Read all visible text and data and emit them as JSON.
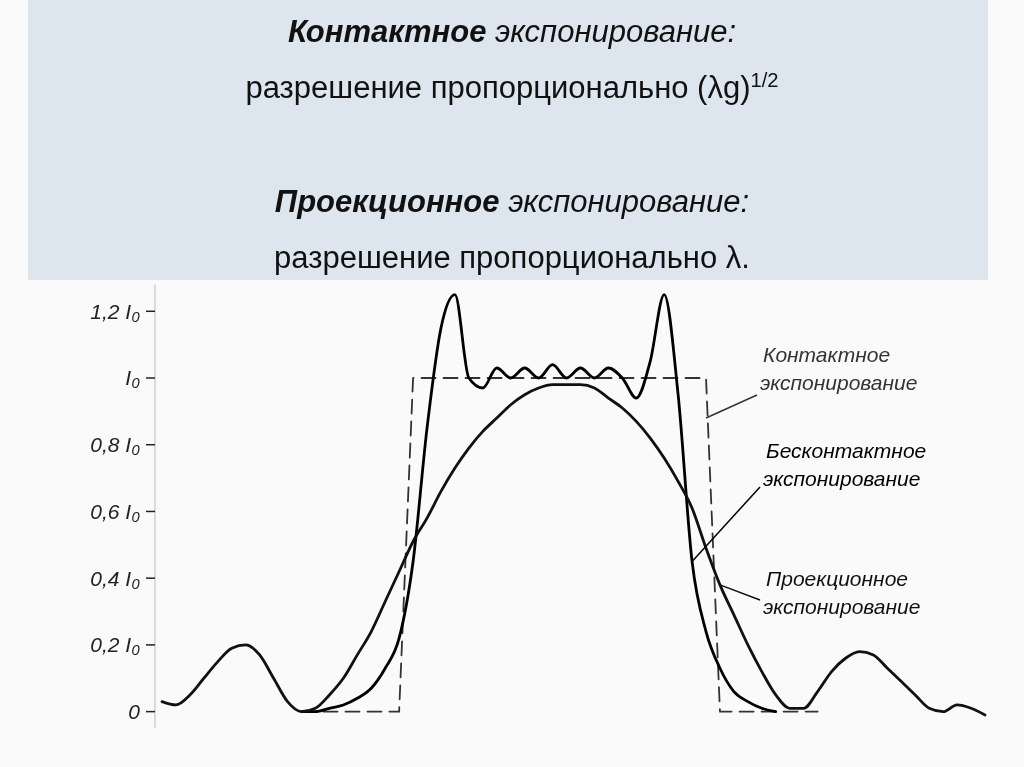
{
  "chart_data": {
    "type": "line",
    "title": "Контактное экспонирование: разрешение пропорционально (λg)$^{1/2}$",
    "subtitle": "Проекционное экспонирование: разрешение  пропорционально λ.",
    "categories": [
      null,
      null,
      null,
      null,
      null,
      null,
      null,
      null,
      null,
      null,
      null,
      null,
      null,
      null,
      null,
      null,
      null,
      null,
      null,
      null,
      null,
      null,
      null,
      null,
      null,
      null,
      null,
      null,
      null,
      null,
      null,
      null,
      null,
      null,
      null,
      null,
      null,
      null,
      null,
      null,
      null,
      null,
      null,
      null,
      null,
      null,
      null,
      null,
      null,
      null,
      null,
      null,
      null,
      null,
      null,
      null,
      null,
      null,
      null,
      null
    ],
    "ylim": [
      -0.05,
      1.28
    ],
    "yticks": [
      0,
      {
        "value": 0.2,
        "label": "0,2 I₀"
      },
      {
        "value": 0.4,
        "label": "0,4 I₀"
      },
      {
        "value": 0.6,
        "label": "0,6 I₀"
      },
      {
        "value": 0.8,
        "label": "0,8 I₀"
      },
      {
        "value": 1,
        "label": "I₀"
      },
      {
        "value": 1.2,
        "label": "1,2 I₀"
      }
    ],
    "grid": false,
    "legend": "right",
    "series": [
      {
        "name": "Контактное экспонирование",
        "color": "#333333",
        "line_style": "dashed",
        "values": [
          null,
          null,
          null,
          null,
          null,
          null,
          null,
          null,
          null,
          null,
          0,
          0,
          0,
          0,
          0,
          0,
          0,
          0,
          1,
          1,
          1,
          1,
          1,
          1,
          1,
          1,
          1,
          1,
          1,
          1,
          1,
          1,
          1,
          1,
          1,
          1,
          1,
          1,
          1,
          1,
          0,
          0,
          0,
          0,
          0,
          0,
          0,
          0,
          null,
          null,
          null,
          null,
          null,
          null,
          null,
          null,
          null,
          null,
          null,
          null
        ]
      },
      {
        "name": "Бесконтактное экспонирование",
        "color": "#000000",
        "line_style": "solid",
        "values": [
          null,
          null,
          null,
          null,
          null,
          null,
          null,
          null,
          null,
          null,
          0,
          0,
          0.01,
          0.02,
          0.04,
          0.07,
          0.13,
          0.22,
          0.45,
          0.85,
          1.15,
          1.25,
          1,
          0.97,
          1.03,
          1,
          1.03,
          1,
          1.04,
          1,
          1.03,
          1,
          1.03,
          1,
          0.94,
          1.05,
          1.25,
          0.95,
          0.45,
          0.24,
          0.13,
          0.06,
          0.03,
          0.01,
          0,
          null,
          null,
          null,
          null,
          null,
          null,
          null,
          null,
          null,
          null,
          null,
          null,
          null,
          null,
          null
        ]
      },
      {
        "name": "Проекционное экспонирование",
        "color": "#111111",
        "line_style": "solid",
        "values": [
          0.03,
          0.02,
          0.05,
          0.1,
          0.15,
          0.19,
          0.2,
          0.17,
          0.1,
          0.03,
          0,
          0.01,
          0.05,
          0.1,
          0.17,
          0.24,
          0.33,
          0.42,
          0.51,
          0.58,
          0.66,
          0.73,
          0.79,
          0.84,
          0.88,
          0.92,
          0.95,
          0.97,
          0.98,
          0.98,
          0.98,
          0.97,
          0.94,
          0.91,
          0.87,
          0.82,
          0.76,
          0.69,
          0.61,
          0.49,
          0.38,
          0.29,
          0.2,
          0.12,
          0.05,
          0.01,
          0.01,
          0.06,
          0.12,
          0.16,
          0.18,
          0.17,
          0.13,
          0.09,
          0.05,
          0.01,
          0,
          0.02,
          0.01,
          -0.01
        ]
      }
    ]
  }
}
